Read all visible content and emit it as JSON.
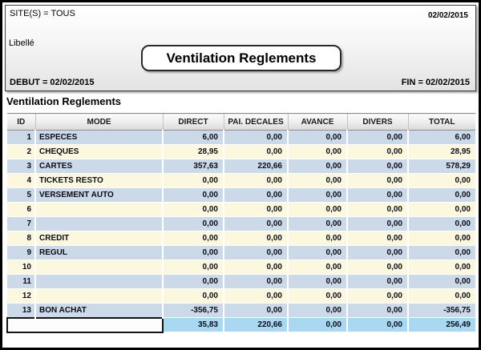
{
  "window": {
    "site_label": "SITE(S) = TOUS",
    "report_date": "02/02/2015",
    "libelle_label": "Libellé",
    "title": "Ventilation Reglements",
    "debut_label": "DEBUT = 02/02/2015",
    "fin_label": "FIN = 02/02/2015"
  },
  "section_title": "Ventilation Reglements",
  "table": {
    "columns": [
      "ID",
      "MODE",
      "DIRECT",
      "PAI. DECALES",
      "AVANCE",
      "DIVERS",
      "TOTAL"
    ],
    "column_keys": [
      "id",
      "mode",
      "direct",
      "pai-decales",
      "avance",
      "divers",
      "total"
    ],
    "rows": [
      [
        "1",
        "ESPECES",
        "6,00",
        "0,00",
        "0,00",
        "0,00",
        "6,00"
      ],
      [
        "2",
        "CHEQUES",
        "28,95",
        "0,00",
        "0,00",
        "0,00",
        "28,95"
      ],
      [
        "3",
        "CARTES",
        "357,63",
        "220,66",
        "0,00",
        "0,00",
        "578,29"
      ],
      [
        "4",
        "TICKETS RESTO",
        "0,00",
        "0,00",
        "0,00",
        "0,00",
        "0,00"
      ],
      [
        "5",
        "VERSEMENT AUTO",
        "0,00",
        "0,00",
        "0,00",
        "0,00",
        "0,00"
      ],
      [
        "6",
        "",
        "0,00",
        "0,00",
        "0,00",
        "0,00",
        "0,00"
      ],
      [
        "7",
        "",
        "0,00",
        "0,00",
        "0,00",
        "0,00",
        "0,00"
      ],
      [
        "8",
        "CREDIT",
        "0,00",
        "0,00",
        "0,00",
        "0,00",
        "0,00"
      ],
      [
        "9",
        "REGUL",
        "0,00",
        "0,00",
        "0,00",
        "0,00",
        "0,00"
      ],
      [
        "10",
        "",
        "0,00",
        "0,00",
        "0,00",
        "0,00",
        "0,00"
      ],
      [
        "11",
        "",
        "0,00",
        "0,00",
        "0,00",
        "0,00",
        "0,00"
      ],
      [
        "12",
        "",
        "0,00",
        "0,00",
        "0,00",
        "0,00",
        "0,00"
      ],
      [
        "13",
        "BON ACHAT",
        "-356,75",
        "0,00",
        "0,00",
        "0,00",
        "-356,75"
      ]
    ],
    "total_row": [
      "35,83",
      "220,66",
      "0,00",
      "0,00",
      "256,49"
    ]
  },
  "colors": {
    "row_blue": "#ccd9e9",
    "row_cream": "#fbf8df",
    "total_blue": "#a9d8f3"
  }
}
